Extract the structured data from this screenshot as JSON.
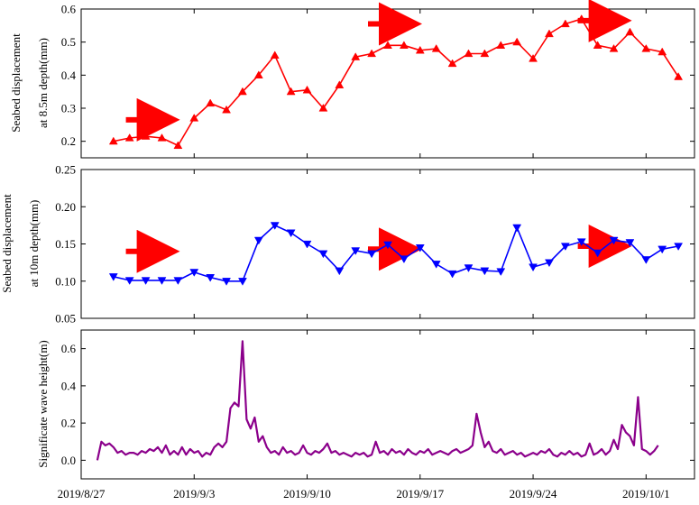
{
  "chart_data": [
    {
      "type": "line",
      "ylabel_lines": [
        "Seabed displacement",
        "at 8.5m depth(mm)"
      ],
      "ylim": [
        0.15,
        0.6
      ],
      "yticks": [
        "0.2",
        "0.3",
        "0.4",
        "0.5",
        "0.6"
      ],
      "xlim": [
        "2019-08-27",
        "2019-10-04"
      ],
      "grid": false,
      "color": "#ff0000",
      "marker": "triangle-up",
      "series": [
        {
          "x": [
            "2019-08-29",
            "2019-08-30",
            "2019-08-31",
            "2019-09-01",
            "2019-09-02",
            "2019-09-03",
            "2019-09-04",
            "2019-09-05",
            "2019-09-06",
            "2019-09-07",
            "2019-09-08",
            "2019-09-09",
            "2019-09-10",
            "2019-09-11",
            "2019-09-12",
            "2019-09-13",
            "2019-09-14",
            "2019-09-15",
            "2019-09-16",
            "2019-09-17",
            "2019-09-18",
            "2019-09-19",
            "2019-09-20",
            "2019-09-21",
            "2019-09-22",
            "2019-09-23",
            "2019-09-24",
            "2019-09-25",
            "2019-09-26",
            "2019-09-27",
            "2019-09-28",
            "2019-09-29",
            "2019-09-30",
            "2019-10-01",
            "2019-10-02",
            "2019-10-03"
          ],
          "y": [
            0.2,
            0.21,
            0.215,
            0.21,
            0.187,
            0.27,
            0.315,
            0.295,
            0.35,
            0.4,
            0.46,
            0.35,
            0.355,
            0.3,
            0.37,
            0.455,
            0.465,
            0.49,
            0.49,
            0.475,
            0.48,
            0.435,
            0.465,
            0.465,
            0.49,
            0.5,
            0.45,
            0.525,
            0.555,
            0.57,
            0.49,
            0.48,
            0.53,
            0.48,
            0.47,
            0.395
          ]
        }
      ],
      "arrows": [
        {
          "x": "2019-08-31",
          "y": 0.265
        },
        {
          "x": "2019-09-15",
          "y": 0.555
        },
        {
          "x": "2019-09-28",
          "y": 0.565
        }
      ]
    },
    {
      "type": "line",
      "ylabel_lines": [
        "Seabed displacement",
        "at 10m depth(mm)"
      ],
      "ylim": [
        0.05,
        0.25
      ],
      "yticks": [
        "0.05",
        "0.10",
        "0.15",
        "0.20",
        "0.25"
      ],
      "xlim": [
        "2019-08-27",
        "2019-10-04"
      ],
      "grid": false,
      "color": "#0000ff",
      "marker": "triangle-down",
      "series": [
        {
          "x": [
            "2019-08-29",
            "2019-08-30",
            "2019-08-31",
            "2019-09-01",
            "2019-09-02",
            "2019-09-03",
            "2019-09-04",
            "2019-09-05",
            "2019-09-06",
            "2019-09-07",
            "2019-09-08",
            "2019-09-09",
            "2019-09-10",
            "2019-09-11",
            "2019-09-12",
            "2019-09-13",
            "2019-09-14",
            "2019-09-15",
            "2019-09-16",
            "2019-09-17",
            "2019-09-18",
            "2019-09-19",
            "2019-09-20",
            "2019-09-21",
            "2019-09-22",
            "2019-09-23",
            "2019-09-24",
            "2019-09-25",
            "2019-09-26",
            "2019-09-27",
            "2019-09-28",
            "2019-09-29",
            "2019-09-30",
            "2019-10-01",
            "2019-10-02",
            "2019-10-03"
          ],
          "y": [
            0.106,
            0.101,
            0.101,
            0.101,
            0.101,
            0.112,
            0.105,
            0.1,
            0.1,
            0.155,
            0.175,
            0.165,
            0.15,
            0.137,
            0.114,
            0.141,
            0.137,
            0.149,
            0.13,
            0.145,
            0.123,
            0.11,
            0.118,
            0.114,
            0.113,
            0.172,
            0.119,
            0.125,
            0.147,
            0.153,
            0.138,
            0.155,
            0.152,
            0.129,
            0.143,
            0.147
          ]
        }
      ],
      "arrows": [
        {
          "x": "2019-08-31",
          "y": 0.14
        },
        {
          "x": "2019-09-15",
          "y": 0.143
        },
        {
          "x": "2019-09-28",
          "y": 0.147
        }
      ]
    },
    {
      "type": "line",
      "ylabel_lines": [
        "Significate wave height(m)"
      ],
      "ylim": [
        -0.1,
        0.7
      ],
      "yticks": [
        "0.0",
        "0.2",
        "0.4",
        "0.6"
      ],
      "xlim": [
        "2019-08-27",
        "2019-10-04"
      ],
      "xticks": [
        "2019/8/27",
        "2019/9/3",
        "2019/9/10",
        "2019/9/17",
        "2019/9/24",
        "2019/10/1"
      ],
      "grid": false,
      "color": "#8b008b",
      "series": [
        {
          "x_start": "2019-08-28",
          "x_step_days": 0.25,
          "y": [
            0.0,
            0.1,
            0.08,
            0.09,
            0.07,
            0.04,
            0.05,
            0.03,
            0.04,
            0.04,
            0.03,
            0.05,
            0.04,
            0.06,
            0.05,
            0.07,
            0.04,
            0.08,
            0.03,
            0.05,
            0.03,
            0.07,
            0.03,
            0.06,
            0.04,
            0.05,
            0.02,
            0.04,
            0.03,
            0.07,
            0.09,
            0.07,
            0.1,
            0.28,
            0.31,
            0.29,
            0.64,
            0.22,
            0.17,
            0.23,
            0.1,
            0.13,
            0.07,
            0.04,
            0.05,
            0.03,
            0.07,
            0.04,
            0.05,
            0.03,
            0.04,
            0.08,
            0.04,
            0.03,
            0.05,
            0.04,
            0.06,
            0.09,
            0.04,
            0.05,
            0.03,
            0.04,
            0.03,
            0.02,
            0.04,
            0.03,
            0.04,
            0.02,
            0.03,
            0.1,
            0.04,
            0.05,
            0.03,
            0.06,
            0.04,
            0.05,
            0.03,
            0.06,
            0.04,
            0.03,
            0.05,
            0.04,
            0.06,
            0.03,
            0.04,
            0.05,
            0.04,
            0.03,
            0.05,
            0.06,
            0.04,
            0.05,
            0.06,
            0.08,
            0.25,
            0.15,
            0.07,
            0.1,
            0.05,
            0.04,
            0.06,
            0.03,
            0.04,
            0.05,
            0.03,
            0.04,
            0.02,
            0.03,
            0.04,
            0.03,
            0.05,
            0.04,
            0.06,
            0.03,
            0.02,
            0.04,
            0.03,
            0.05,
            0.03,
            0.04,
            0.02,
            0.03,
            0.09,
            0.03,
            0.04,
            0.06,
            0.03,
            0.05,
            0.11,
            0.06,
            0.19,
            0.15,
            0.13,
            0.08,
            0.34,
            0.06,
            0.05,
            0.03,
            0.05,
            0.08
          ]
        }
      ]
    }
  ]
}
